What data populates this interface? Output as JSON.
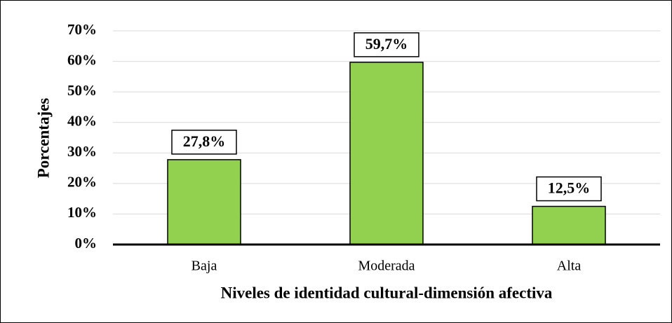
{
  "chart_data": {
    "type": "bar",
    "x_label": "Niveles de identidad cultural-dimensión afectiva",
    "y_label": "Porcentajes",
    "categories": [
      "Baja",
      "Moderada",
      "Alta"
    ],
    "values": [
      27.8,
      59.7,
      12.5
    ],
    "value_labels": [
      "27,8%",
      "59,7%",
      "12,5%"
    ],
    "color": "#92d050",
    "ylim": [
      0,
      70
    ],
    "yticks": [
      {
        "value": 0,
        "label": "0%"
      },
      {
        "value": 10,
        "label": "10%"
      },
      {
        "value": 20,
        "label": "20%"
      },
      {
        "value": 30,
        "label": "30%"
      },
      {
        "value": 40,
        "label": "40%"
      },
      {
        "value": 50,
        "label": "50%"
      },
      {
        "value": 60,
        "label": "60%"
      },
      {
        "value": 70,
        "label": "70%"
      }
    ],
    "grid": true
  }
}
